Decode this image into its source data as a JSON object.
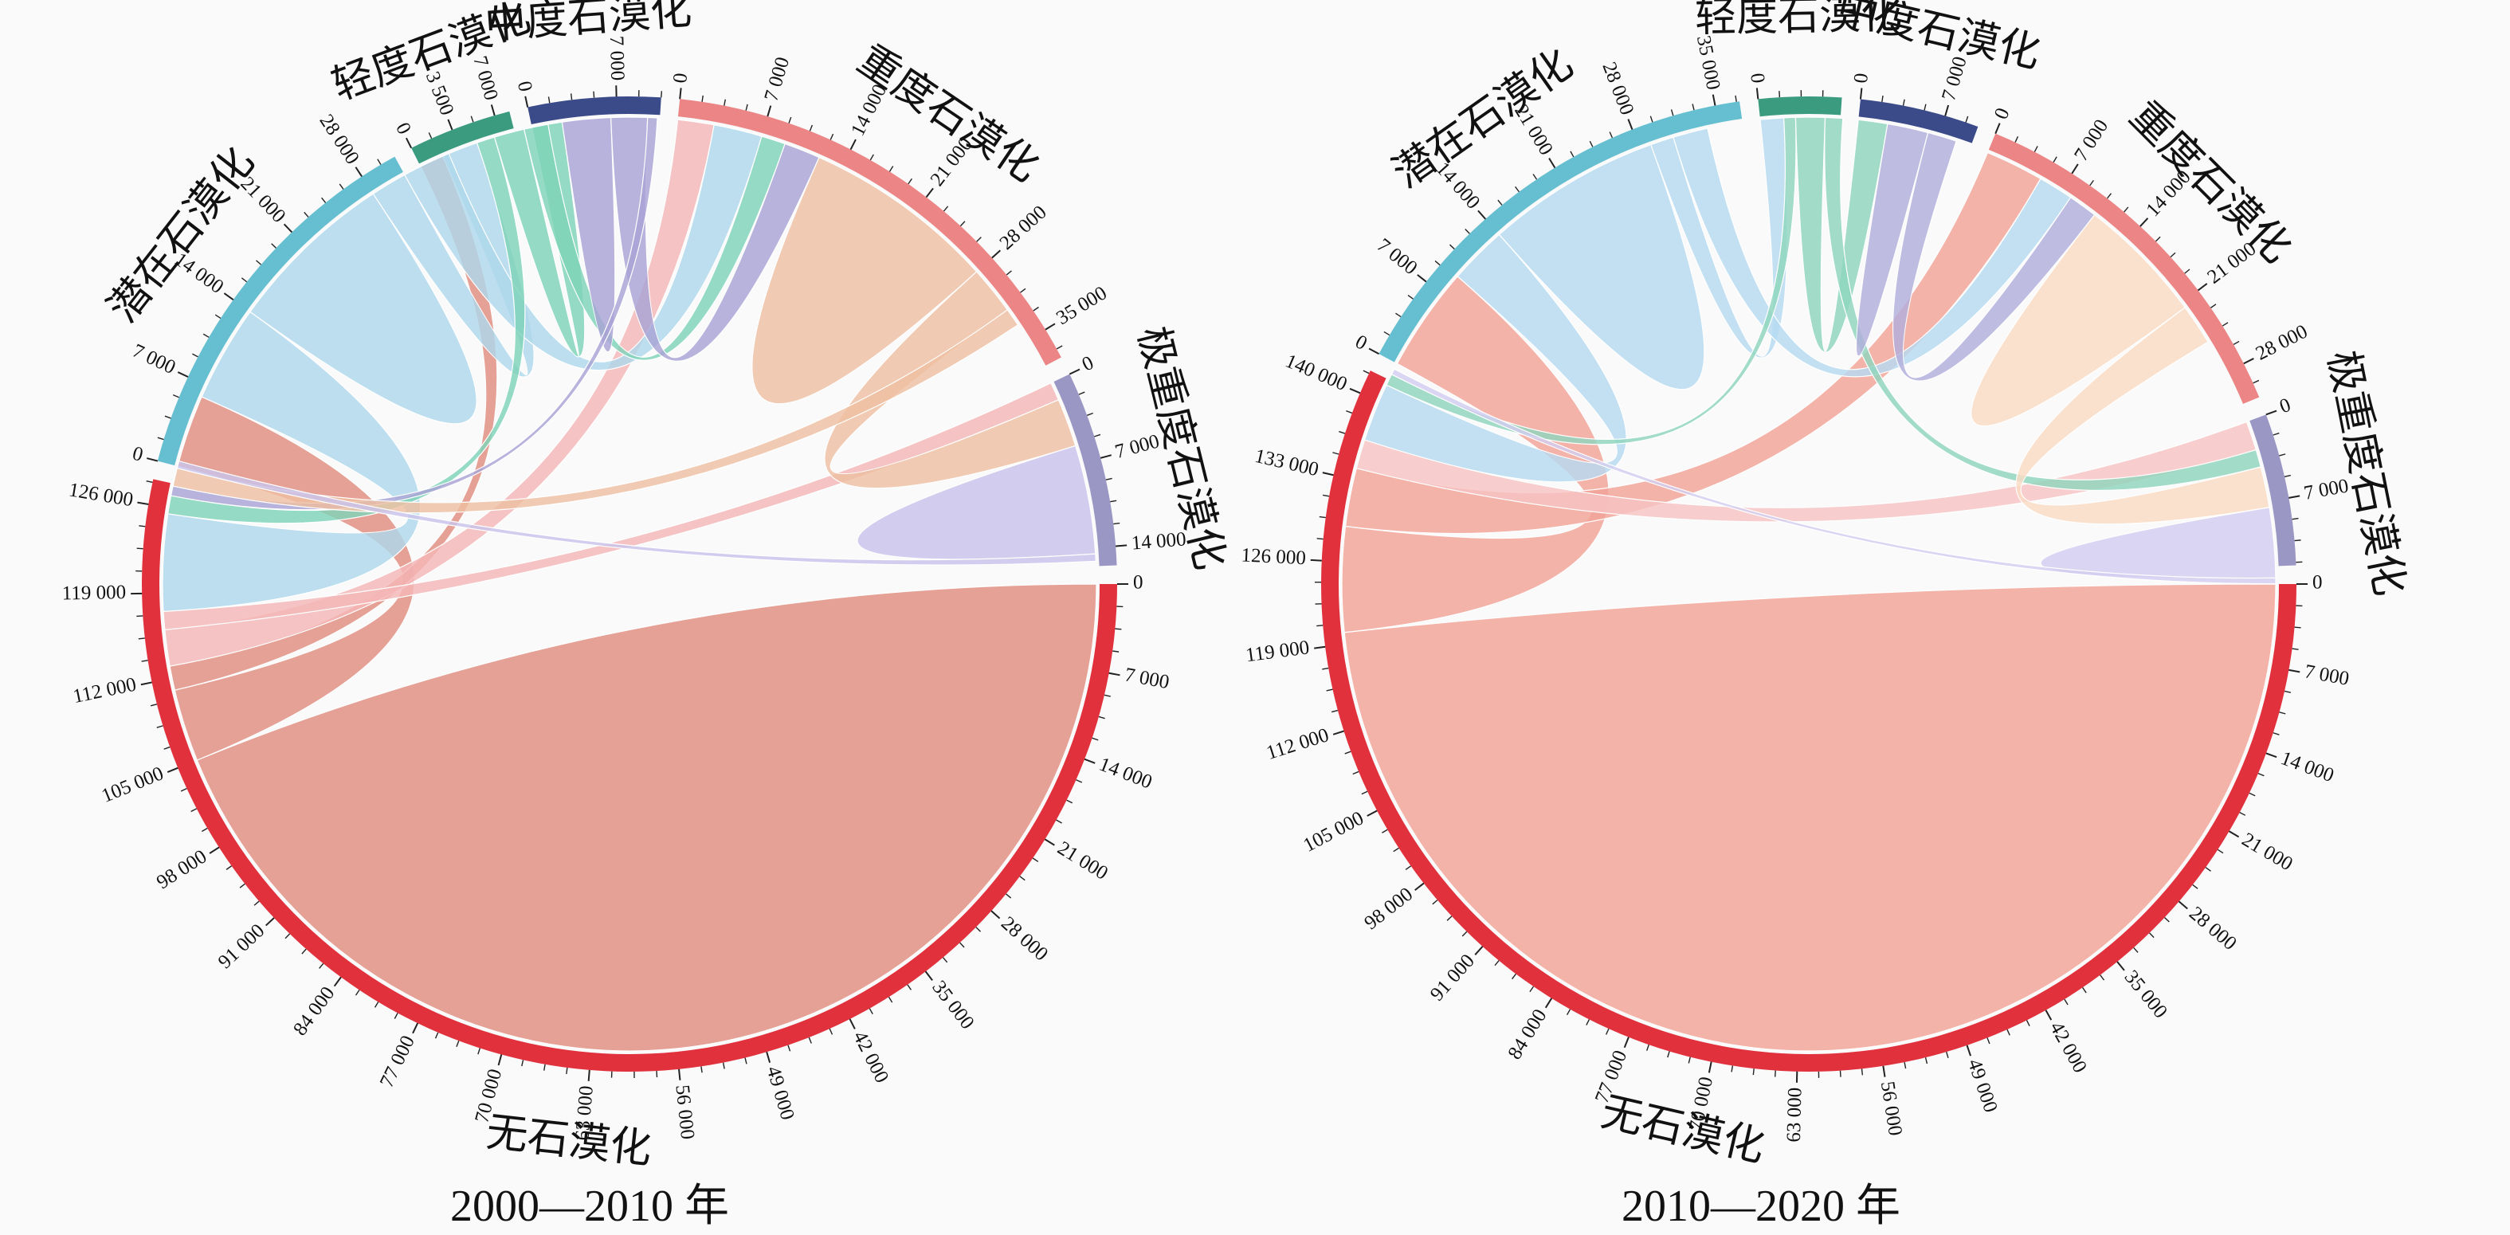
{
  "chart_data": [
    {
      "type": "chord",
      "title": "2000—2010 年",
      "max_total": 146000,
      "groups": [
        {
          "name": "无石漠化",
          "total": 128000,
          "color": "#e0313c",
          "ticks": [
            "0",
            "7 000",
            "14 000",
            "21 000",
            "28 000",
            "35 000",
            "42 000",
            "49 000",
            "56 000",
            "63 000",
            "70 000",
            "77 000",
            "84 000",
            "91 000",
            "98 000",
            "105 000",
            "112 000",
            "119 000",
            "126 000"
          ]
        },
        {
          "name": "潜在石漠化",
          "total": 31000,
          "color": "#66bfd0",
          "ticks": [
            "0",
            "7 000",
            "14 000",
            "21 000",
            "28 000"
          ]
        },
        {
          "name": "轻度石漠化",
          "total": 8200,
          "color": "#3a9b7f",
          "ticks": [
            "0",
            "3 500",
            "7 000"
          ]
        },
        {
          "name": "中度石漠化",
          "total": 10500,
          "color": "#3b4b8a",
          "ticks": [
            "0",
            "7 000"
          ]
        },
        {
          "name": "重度石漠化",
          "total": 37500,
          "color": "#ec8585",
          "ticks": [
            "0",
            "7 000",
            "14 000",
            "21 000",
            "28 000",
            "35 000"
          ]
        },
        {
          "name": "极重度石漠化",
          "total": 15500,
          "color": "#9a97c4",
          "ticks": [
            "0",
            "7 000",
            "14 000"
          ]
        }
      ],
      "flows": [
        {
          "from": "无石漠化",
          "to": "无石漠化",
          "value": 105000,
          "color": "#e08d80"
        },
        {
          "from": "无石漠化",
          "to": "潜在石漠化",
          "value": 6000,
          "color": "#e08d80"
        },
        {
          "from": "无石漠化",
          "to": "轻度石漠化",
          "value": 2000,
          "color": "#e08d80"
        },
        {
          "from": "无石漠化",
          "to": "重度石漠化",
          "value": 3000,
          "color": "#f4b7b7"
        },
        {
          "from": "无石漠化",
          "to": "极重度石漠化",
          "value": 1500,
          "color": "#f4b7b7"
        },
        {
          "from": "潜在石漠化",
          "to": "无石漠化",
          "value": 8000,
          "color": "#aed8ec"
        },
        {
          "from": "潜在石漠化",
          "to": "潜在石漠化",
          "value": 14000,
          "color": "#aed8ec"
        },
        {
          "from": "潜在石漠化",
          "to": "轻度石漠化",
          "value": 3000,
          "color": "#aed8ec"
        },
        {
          "from": "潜在石漠化",
          "to": "重度石漠化",
          "value": 4000,
          "color": "#aed8ec"
        },
        {
          "from": "轻度石漠化",
          "to": "无石漠化",
          "value": 1500,
          "color": "#7fd3b8"
        },
        {
          "from": "轻度石漠化",
          "to": "中度石漠化",
          "value": 2500,
          "color": "#7fd3b8"
        },
        {
          "from": "轻度石漠化",
          "to": "重度石漠化",
          "value": 2000,
          "color": "#7fd3b8"
        },
        {
          "from": "中度石漠化",
          "to": "中度石漠化",
          "value": 4000,
          "color": "#a8a4d6"
        },
        {
          "from": "中度石漠化",
          "to": "重度石漠化",
          "value": 3000,
          "color": "#a8a4d6"
        },
        {
          "from": "中度石漠化",
          "to": "无石漠化",
          "value": 800,
          "color": "#a8a4d6"
        },
        {
          "from": "重度石漠化",
          "to": "重度石漠化",
          "value": 16000,
          "color": "#eec0a2"
        },
        {
          "from": "重度石漠化",
          "to": "极重度石漠化",
          "value": 4000,
          "color": "#eec0a2"
        },
        {
          "from": "重度石漠化",
          "to": "无石漠化",
          "value": 1500,
          "color": "#eec0a2"
        },
        {
          "from": "极重度石漠化",
          "to": "极重度石漠化",
          "value": 9000,
          "color": "#c9c3ec"
        },
        {
          "from": "极重度石漠化",
          "to": "无石漠化",
          "value": 600,
          "color": "#c9c3ec"
        }
      ]
    },
    {
      "type": "chord",
      "title": "2010—2020 年",
      "max_total": 146000,
      "groups": [
        {
          "name": "无石漠化",
          "total": 142000,
          "color": "#e0313c",
          "ticks": [
            "0",
            "7 000",
            "14 000",
            "21 000",
            "28 000",
            "35 000",
            "42 000",
            "49 000",
            "56 000",
            "63 000",
            "70 000",
            "77 000",
            "84 000",
            "91 000",
            "98 000",
            "105 000",
            "112 000",
            "119 000",
            "126 000",
            "133 000",
            "140 000"
          ]
        },
        {
          "name": "潜在石漠化",
          "total": 37000,
          "color": "#66bfd0",
          "ticks": [
            "0",
            "7 000",
            "14 000",
            "21 000",
            "28 000",
            "35 000"
          ]
        },
        {
          "name": "轻度石漠化",
          "total": 6800,
          "color": "#3a9b7f",
          "ticks": [
            "0"
          ]
        },
        {
          "name": "中度石漠化",
          "total": 9800,
          "color": "#3b4b8a",
          "ticks": [
            "0",
            "7 000"
          ]
        },
        {
          "name": "重度石漠化",
          "total": 31000,
          "color": "#ec8585",
          "ticks": [
            "0",
            "7 000",
            "14 000",
            "21 000",
            "28 000"
          ]
        },
        {
          "name": "极重度石漠化",
          "total": 12500,
          "color": "#9a97c4",
          "ticks": [
            "0",
            "7 000"
          ]
        }
      ],
      "flows": [
        {
          "from": "无石漠化",
          "to": "无石漠化",
          "value": 120000,
          "color": "#f2a397"
        },
        {
          "from": "无石漠化",
          "to": "潜在石漠化",
          "value": 9000,
          "color": "#f2a397"
        },
        {
          "from": "无石漠化",
          "to": "重度石漠化",
          "value": 5000,
          "color": "#f2a397"
        },
        {
          "from": "无石漠化",
          "to": "极重度石漠化",
          "value": 2500,
          "color": "#f7c3c3"
        },
        {
          "from": "潜在石漠化",
          "to": "无石漠化",
          "value": 5000,
          "color": "#b6dbf0"
        },
        {
          "from": "潜在石漠化",
          "to": "潜在石漠化",
          "value": 15000,
          "color": "#b6dbf0"
        },
        {
          "from": "潜在石漠化",
          "to": "轻度石漠化",
          "value": 2000,
          "color": "#b6dbf0"
        },
        {
          "from": "潜在石漠化",
          "to": "重度石漠化",
          "value": 3000,
          "color": "#b6dbf0"
        },
        {
          "from": "轻度石漠化",
          "to": "无石漠化",
          "value": 1000,
          "color": "#8fd6bd"
        },
        {
          "from": "轻度石漠化",
          "to": "中度石漠化",
          "value": 2500,
          "color": "#8fd6bd"
        },
        {
          "from": "轻度石漠化",
          "to": "极重度石漠化",
          "value": 1500,
          "color": "#8fd6bd"
        },
        {
          "from": "中度石漠化",
          "to": "中度石漠化",
          "value": 3500,
          "color": "#b2aedc"
        },
        {
          "from": "中度石漠化",
          "to": "重度石漠化",
          "value": 2500,
          "color": "#b2aedc"
        },
        {
          "from": "重度石漠化",
          "to": "重度石漠化",
          "value": 11000,
          "color": "#fadcc4"
        },
        {
          "from": "重度石漠化",
          "to": "极重度石漠化",
          "value": 3500,
          "color": "#fadcc4"
        },
        {
          "from": "极重度石漠化",
          "to": "极重度石漠化",
          "value": 6000,
          "color": "#d2cdf0"
        },
        {
          "from": "极重度石漠化",
          "to": "无石漠化",
          "value": 500,
          "color": "#d2cdf0"
        }
      ]
    }
  ]
}
